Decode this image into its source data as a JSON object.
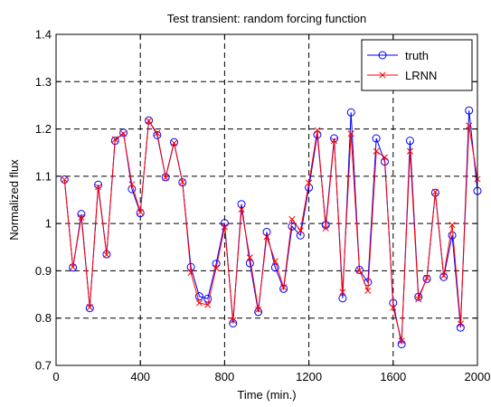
{
  "chart_data": {
    "type": "line",
    "title": "Test transient: random forcing function",
    "xlabel": "Time (min.)",
    "ylabel": "Normalized flux",
    "xlim": [
      0,
      2000
    ],
    "ylim": [
      0.7,
      1.4
    ],
    "xticks": [
      0,
      400,
      800,
      1200,
      1600,
      2000
    ],
    "yticks": [
      0.7,
      0.8,
      0.9,
      1.0,
      1.1,
      1.2,
      1.3,
      1.4
    ],
    "ytick_labels": [
      "0.7",
      "0.8",
      "0.9",
      "1",
      "1.1",
      "1.2",
      "1.3",
      "1.4"
    ],
    "grid": true,
    "legend_position": "top-right",
    "x": [
      40,
      80,
      120,
      160,
      200,
      240,
      280,
      320,
      360,
      400,
      440,
      480,
      520,
      560,
      600,
      640,
      680,
      720,
      760,
      800,
      840,
      880,
      920,
      960,
      1000,
      1040,
      1080,
      1120,
      1160,
      1200,
      1240,
      1280,
      1320,
      1360,
      1400,
      1440,
      1480,
      1520,
      1560,
      1600,
      1640,
      1680,
      1720,
      1760,
      1800,
      1840,
      1880,
      1920,
      1960,
      2000
    ],
    "series": [
      {
        "name": "truth",
        "color": "#0000ff",
        "marker": "circle",
        "values": [
          1.093,
          0.907,
          1.02,
          0.821,
          1.082,
          0.935,
          1.175,
          1.192,
          1.073,
          1.022,
          1.218,
          1.187,
          1.098,
          1.172,
          1.087,
          0.908,
          0.846,
          0.841,
          0.915,
          1.001,
          0.789,
          1.041,
          0.916,
          0.813,
          0.982,
          0.907,
          0.862,
          0.994,
          0.975,
          1.076,
          1.188,
          0.997,
          1.18,
          0.842,
          1.235,
          0.902,
          0.876,
          1.18,
          1.131,
          0.832,
          0.745,
          1.175,
          0.845,
          0.883,
          1.065,
          0.887,
          0.975,
          0.78,
          1.239,
          1.069
        ]
      },
      {
        "name": "LRNN",
        "color": "#ff0000",
        "marker": "x",
        "values": [
          1.093,
          0.908,
          1.013,
          0.823,
          1.077,
          0.934,
          1.178,
          1.19,
          1.083,
          1.024,
          1.217,
          1.191,
          1.097,
          1.17,
          1.088,
          0.896,
          0.832,
          0.828,
          0.906,
          0.993,
          0.795,
          1.03,
          0.928,
          0.818,
          0.972,
          0.92,
          0.865,
          1.009,
          0.985,
          1.086,
          1.197,
          0.99,
          1.175,
          0.855,
          1.19,
          0.901,
          0.858,
          1.153,
          1.14,
          0.822,
          0.752,
          1.153,
          0.84,
          0.885,
          1.067,
          0.89,
          0.997,
          0.788,
          1.207,
          1.094
        ]
      }
    ]
  }
}
